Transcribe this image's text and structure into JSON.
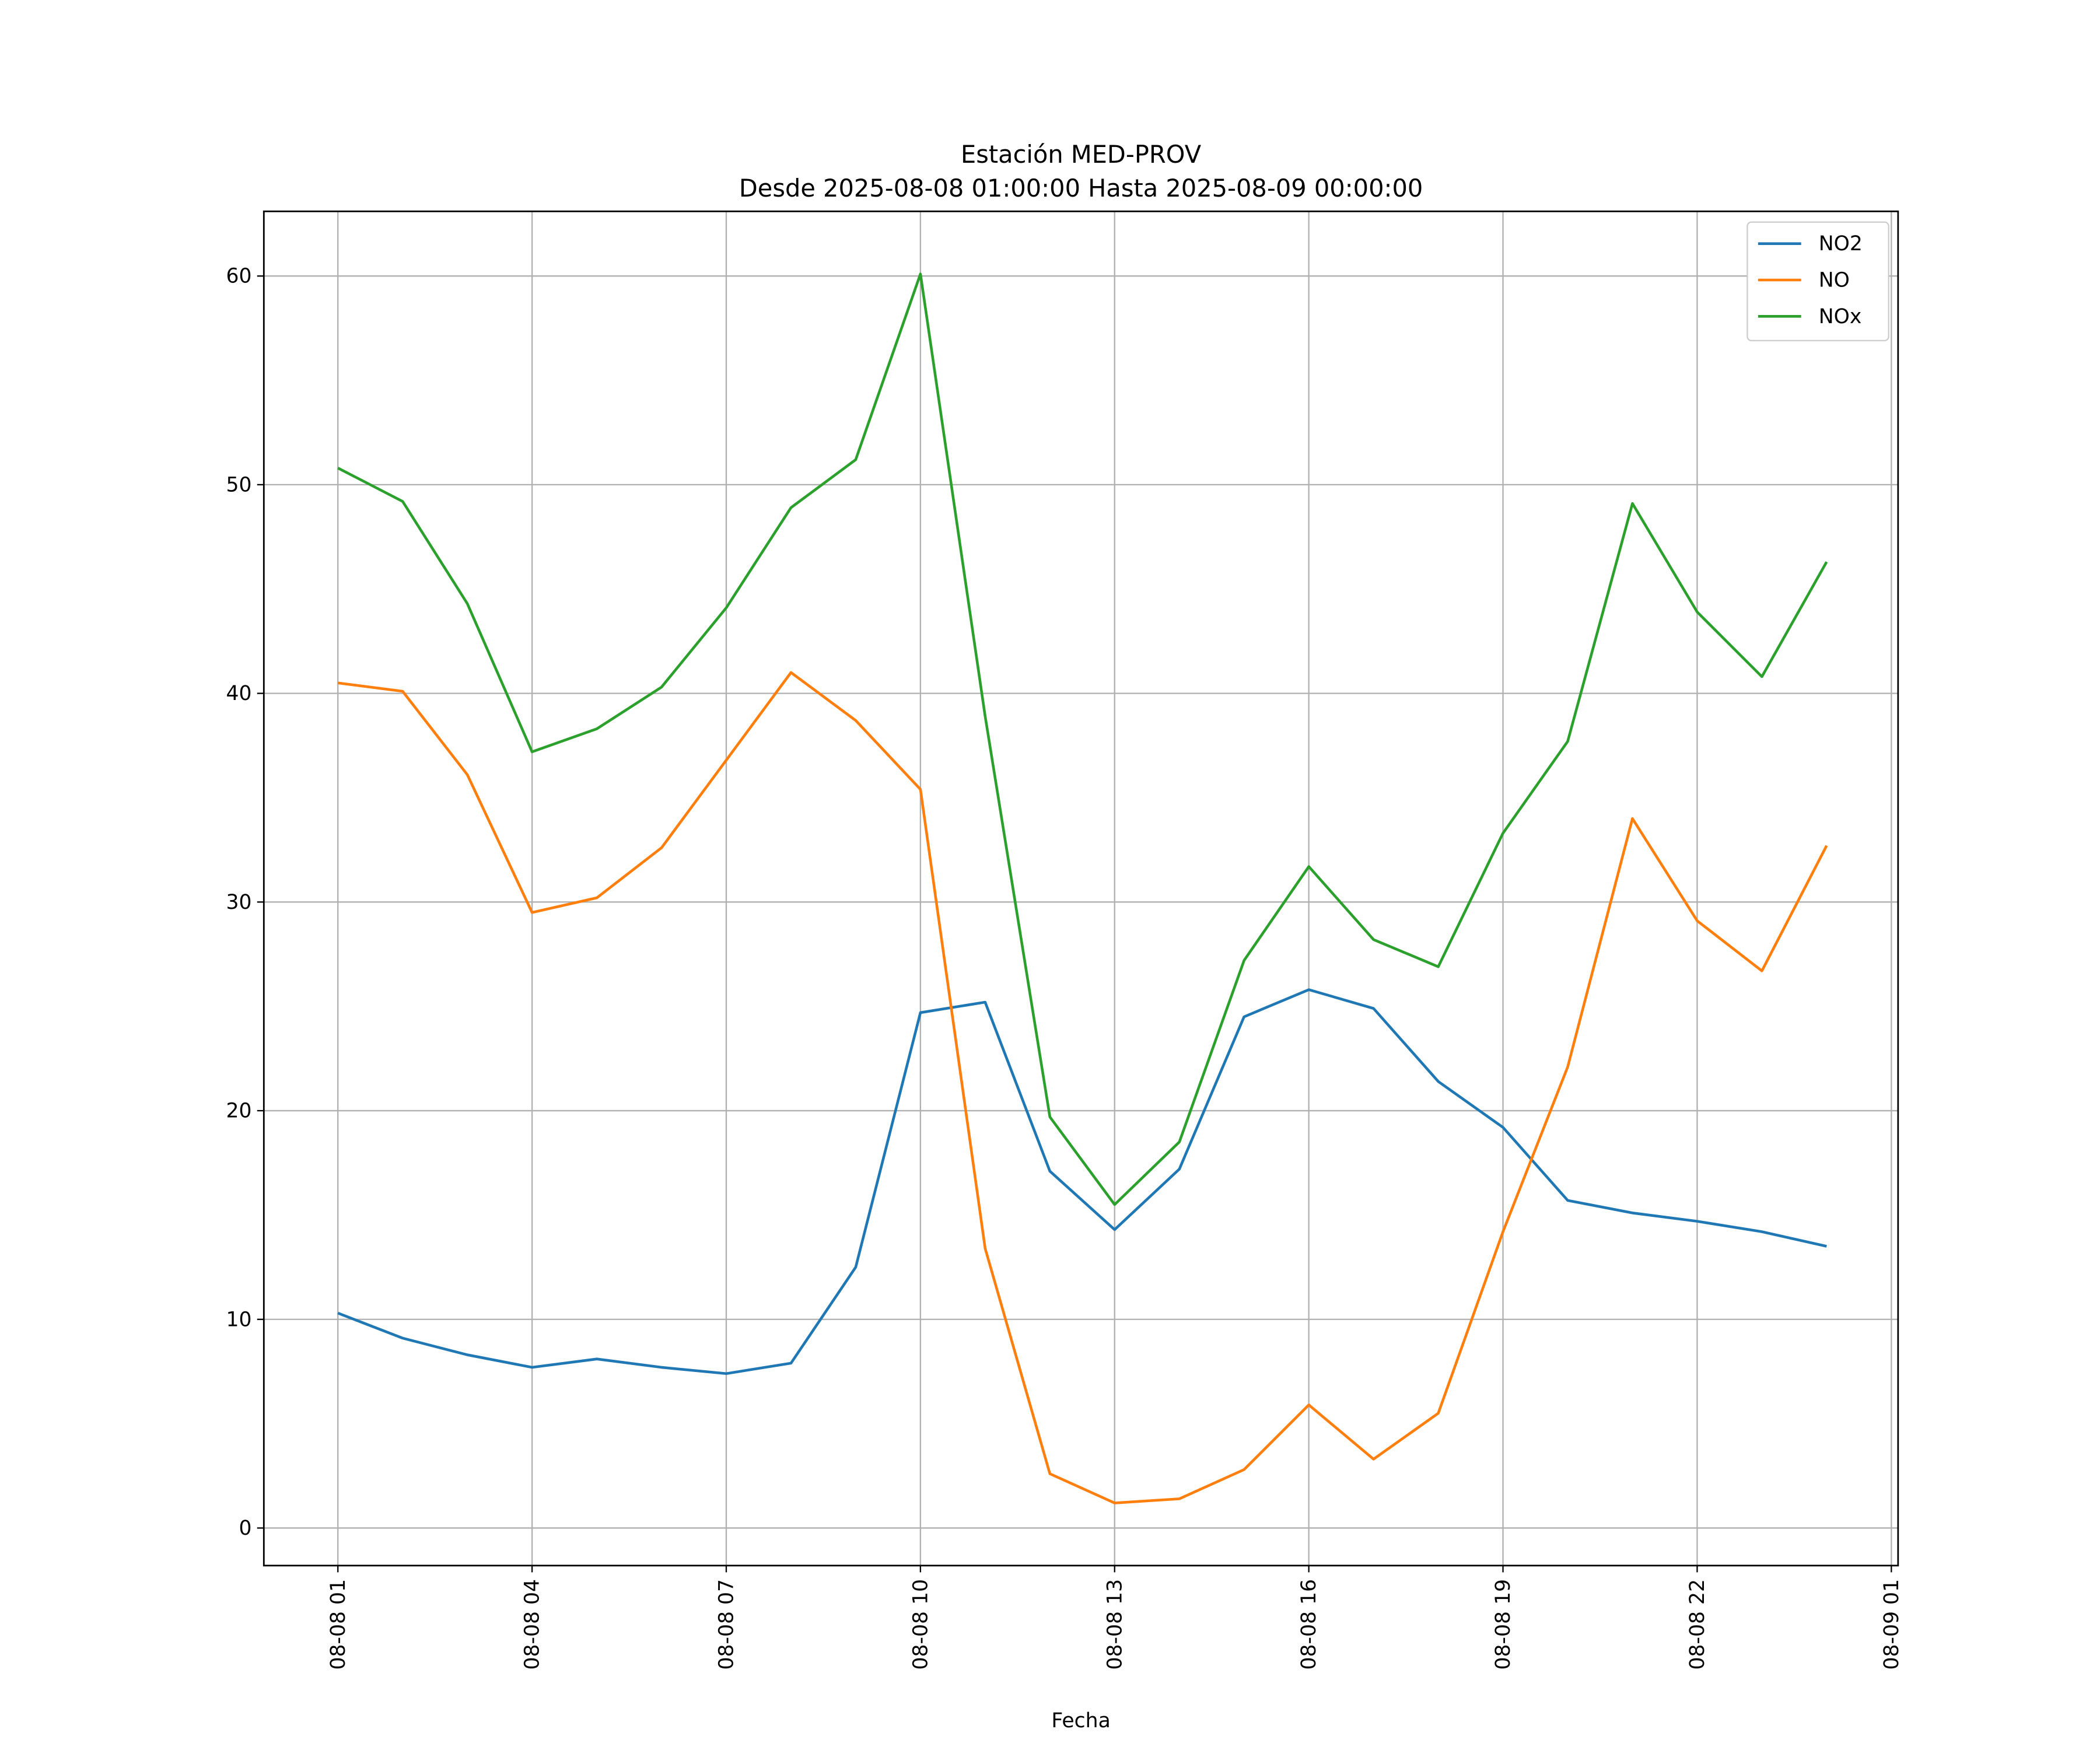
{
  "chart_data": {
    "type": "line",
    "title": "Estación MED-PROV",
    "subtitle": "Desde 2025-08-08 01:00:00 Hasta 2025-08-09 00:00:00",
    "xlabel": "Fecha",
    "ylabel": "",
    "grid": true,
    "legend_position": "top-right",
    "x": [
      "2025-08-08 01:00",
      "2025-08-08 02:00",
      "2025-08-08 03:00",
      "2025-08-08 04:00",
      "2025-08-08 05:00",
      "2025-08-08 06:00",
      "2025-08-08 07:00",
      "2025-08-08 08:00",
      "2025-08-08 09:00",
      "2025-08-08 10:00",
      "2025-08-08 11:00",
      "2025-08-08 12:00",
      "2025-08-08 13:00",
      "2025-08-08 14:00",
      "2025-08-08 15:00",
      "2025-08-08 16:00",
      "2025-08-08 17:00",
      "2025-08-08 18:00",
      "2025-08-08 19:00",
      "2025-08-08 20:00",
      "2025-08-08 21:00",
      "2025-08-08 22:00",
      "2025-08-08 23:00",
      "2025-08-09 00:00"
    ],
    "xticks": [
      "08-08 01",
      "08-08 04",
      "08-08 07",
      "08-08 10",
      "08-08 13",
      "08-08 16",
      "08-08 19",
      "08-08 22",
      "08-09 01"
    ],
    "yticks": [
      "0",
      "10",
      "20",
      "30",
      "40",
      "50",
      "60"
    ],
    "ylim": [
      -1.8,
      63.1
    ],
    "series": [
      {
        "name": "NO2",
        "color": "#1f77b4",
        "values": [
          10.3,
          9.1,
          8.3,
          7.7,
          8.1,
          7.7,
          7.4,
          7.9,
          12.5,
          24.7,
          25.2,
          17.1,
          14.3,
          17.2,
          24.5,
          25.8,
          24.9,
          21.4,
          19.2,
          15.7,
          15.1,
          14.7,
          14.2,
          13.5
        ]
      },
      {
        "name": "NO",
        "color": "#ff7f0e",
        "values": [
          40.5,
          40.1,
          36.1,
          29.5,
          30.2,
          32.6,
          36.8,
          41.0,
          38.7,
          35.4,
          13.4,
          2.6,
          1.2,
          1.4,
          2.8,
          5.9,
          3.3,
          5.5,
          14.2,
          22.1,
          34.0,
          29.1,
          26.7,
          32.7
        ]
      },
      {
        "name": "NOx",
        "color": "#2ca02c",
        "values": [
          50.8,
          49.2,
          44.3,
          37.2,
          38.3,
          40.3,
          44.1,
          48.9,
          51.2,
          60.1,
          38.9,
          19.7,
          15.5,
          18.5,
          27.2,
          31.7,
          28.2,
          26.9,
          33.3,
          37.7,
          49.1,
          43.9,
          40.8,
          46.3
        ]
      }
    ]
  }
}
